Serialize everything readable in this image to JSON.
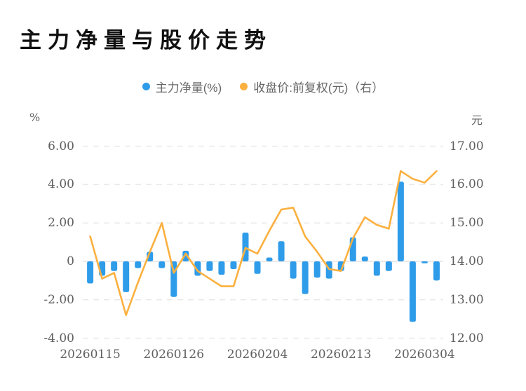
{
  "title": "主力净量与股价走势",
  "legend": [
    {
      "label": "主力净量(%)",
      "color": "#2f9ce9"
    },
    {
      "label": "收盘价:前复权(元)（右）",
      "color": "#fbb03f"
    }
  ],
  "chart_data": {
    "type": "combo-bar-line",
    "title": "主力净量与股价走势",
    "left_axis": {
      "unit": "%",
      "ticks": [
        "6.00",
        "4.00",
        "2.00",
        "0",
        "-2.00",
        "-4.00"
      ],
      "tick_values": [
        6,
        4,
        2,
        0,
        -2,
        -4
      ],
      "range": [
        -4,
        6
      ]
    },
    "right_axis": {
      "unit": "元",
      "ticks": [
        "17.00",
        "16.00",
        "15.00",
        "14.00",
        "13.00",
        "12.00"
      ],
      "tick_values": [
        17,
        16,
        15,
        14,
        13,
        12
      ],
      "range": [
        12,
        17
      ]
    },
    "x_ticks": [
      {
        "bar_index": 0,
        "label": "20260115"
      },
      {
        "bar_index": 7,
        "label": "20260126"
      },
      {
        "bar_index": 14,
        "label": "20260204"
      },
      {
        "bar_index": 21,
        "label": "20260213"
      },
      {
        "bar_index": 28,
        "label": "20260304"
      }
    ],
    "series": [
      {
        "name": "主力净量(%)",
        "type": "bar",
        "axis": "left",
        "color": "#2f9ce9",
        "values": [
          -1.15,
          -0.75,
          -0.5,
          -1.6,
          -0.35,
          0.5,
          -0.35,
          -1.85,
          0.55,
          -0.75,
          -0.5,
          -0.7,
          -0.4,
          1.5,
          -0.65,
          0.2,
          1.05,
          -0.9,
          -1.7,
          -0.85,
          -0.9,
          -0.5,
          1.25,
          0.25,
          -0.75,
          -0.5,
          4.15,
          -3.15,
          -0.1,
          -1.0
        ]
      },
      {
        "name": "收盘价:前复权(元)",
        "type": "line",
        "axis": "right",
        "color": "#fbb03f",
        "values": [
          14.65,
          13.55,
          13.7,
          12.6,
          13.45,
          14.25,
          15.0,
          13.7,
          14.2,
          13.75,
          13.55,
          13.35,
          13.35,
          14.35,
          14.2,
          14.8,
          15.35,
          15.4,
          14.65,
          14.25,
          13.8,
          13.75,
          14.6,
          15.15,
          14.95,
          14.85,
          16.35,
          16.15,
          16.05,
          16.35
        ]
      }
    ],
    "grid": {
      "horizontal": true,
      "style": "dashed",
      "color": "#e9e9e9"
    },
    "legend_position": "top-center",
    "background": "#ffffff"
  }
}
